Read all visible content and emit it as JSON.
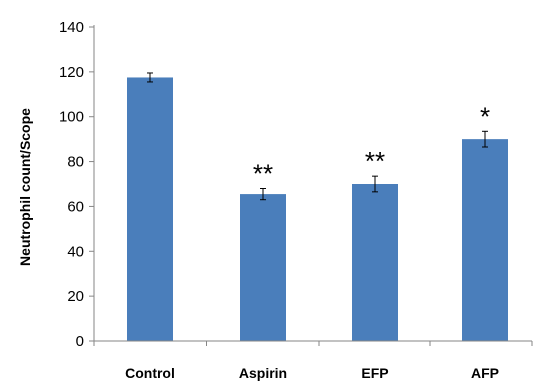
{
  "chart_data": {
    "type": "bar",
    "title": "",
    "xlabel": "",
    "ylabel": "Neutrophil count/Scope",
    "categories": [
      "Control",
      "Aspirin",
      "EFP",
      "AFP"
    ],
    "values": [
      117.5,
      65.5,
      70,
      90
    ],
    "errors": [
      2,
      2.5,
      3.5,
      3.5
    ],
    "significance": [
      "",
      "**",
      "**",
      "*"
    ],
    "ylim": [
      0,
      140
    ],
    "yticks": [
      0,
      20,
      40,
      60,
      80,
      100,
      120,
      140
    ],
    "grid": false,
    "legend": "none",
    "bar_color": "#4a7ebb"
  }
}
